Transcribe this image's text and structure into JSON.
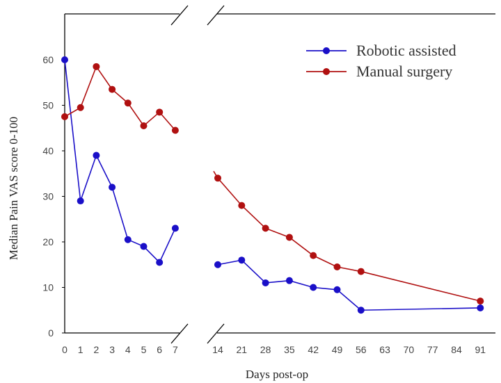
{
  "chart_data": {
    "type": "line",
    "title": "",
    "xlabel": "Days post-op",
    "ylabel": "Median Pain VAS score 0-100",
    "ylim": [
      0,
      70
    ],
    "yticks": [
      "0",
      "10",
      "20",
      "30",
      "40",
      "50",
      "60"
    ],
    "xticks_left": [
      "0",
      "1",
      "2",
      "3",
      "4",
      "5",
      "6",
      "7"
    ],
    "xticks_right": [
      "14",
      "21",
      "28",
      "35",
      "42",
      "49",
      "56",
      "63",
      "70",
      "77",
      "84",
      "91"
    ],
    "axis_break": true,
    "legend_position": "top-right",
    "series": [
      {
        "name": "Robotic assisted",
        "color": "#1a0fc8",
        "left": {
          "x": [
            0,
            1,
            2,
            3,
            4,
            5,
            6,
            7
          ],
          "y": [
            60,
            29,
            39,
            32,
            20.5,
            19,
            15.5,
            23
          ]
        },
        "right": {
          "x": [
            14,
            21,
            28,
            35,
            42,
            49,
            56,
            91
          ],
          "y": [
            15,
            16,
            11,
            11.5,
            10,
            9.5,
            5,
            5.5
          ]
        }
      },
      {
        "name": "Manual surgery",
        "color": "#b01010",
        "left": {
          "x": [
            0,
            1,
            2,
            3,
            4,
            5,
            6,
            7
          ],
          "y": [
            47.5,
            49.5,
            58.5,
            53.5,
            50.5,
            45.5,
            48.5,
            44.5
          ]
        },
        "right": {
          "x": [
            14,
            21,
            28,
            35,
            42,
            49,
            56,
            91
          ],
          "y": [
            34,
            28,
            23,
            21,
            17,
            14.5,
            13.5,
            7
          ]
        }
      }
    ]
  }
}
